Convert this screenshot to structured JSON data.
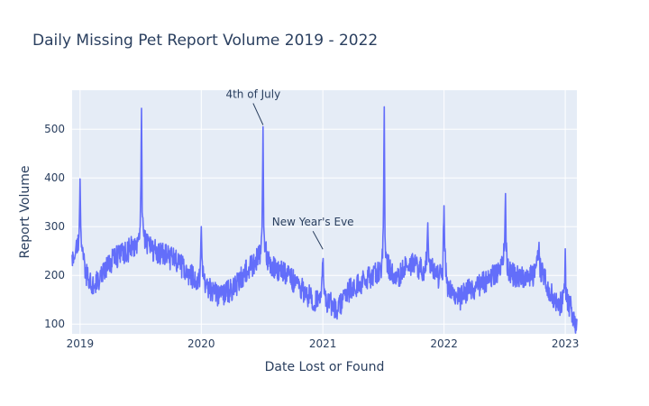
{
  "chart_data": {
    "type": "line",
    "title": "Daily Missing Pet Report Volume 2019 - 2022",
    "xlabel": "Date Lost or Found",
    "ylabel": "Report Volume",
    "x_tick_labels": [
      "2019",
      "2020",
      "2021",
      "2022",
      "2023"
    ],
    "y_ticks": [
      100,
      200,
      300,
      400,
      500
    ],
    "xlim": [
      "2018-12-08",
      "2023-02-05"
    ],
    "ylim": [
      80,
      580
    ],
    "grid": true,
    "colors": {
      "line": "#636efa",
      "plot_bg": "#e5ecf6",
      "grid": "#ffffff",
      "text": "#2a3f5f"
    },
    "x_granularity": "daily",
    "series": [
      {
        "name": "",
        "points": [
          [
            "2018-12-08",
            220
          ],
          [
            "2018-12-15",
            235
          ],
          [
            "2018-12-22",
            260
          ],
          [
            "2018-12-29",
            275
          ],
          [
            "2019-01-01",
            398
          ],
          [
            "2019-01-03",
            300
          ],
          [
            "2019-01-07",
            250
          ],
          [
            "2019-01-12",
            225
          ],
          [
            "2019-01-20",
            200
          ],
          [
            "2019-02-01",
            185
          ],
          [
            "2019-02-15",
            180
          ],
          [
            "2019-03-01",
            195
          ],
          [
            "2019-03-15",
            210
          ],
          [
            "2019-04-01",
            225
          ],
          [
            "2019-04-15",
            235
          ],
          [
            "2019-05-01",
            240
          ],
          [
            "2019-05-15",
            245
          ],
          [
            "2019-06-01",
            255
          ],
          [
            "2019-06-15",
            260
          ],
          [
            "2019-06-25",
            275
          ],
          [
            "2019-07-01",
            300
          ],
          [
            "2019-07-03",
            390
          ],
          [
            "2019-07-05",
            543
          ],
          [
            "2019-07-07",
            330
          ],
          [
            "2019-07-12",
            280
          ],
          [
            "2019-07-20",
            265
          ],
          [
            "2019-08-01",
            255
          ],
          [
            "2019-08-15",
            250
          ],
          [
            "2019-09-01",
            245
          ],
          [
            "2019-09-15",
            240
          ],
          [
            "2019-10-01",
            235
          ],
          [
            "2019-10-15",
            230
          ],
          [
            "2019-11-01",
            220
          ],
          [
            "2019-11-15",
            210
          ],
          [
            "2019-12-01",
            200
          ],
          [
            "2019-12-15",
            190
          ],
          [
            "2019-12-28",
            195
          ],
          [
            "2020-01-01",
            300
          ],
          [
            "2020-01-03",
            235
          ],
          [
            "2020-01-10",
            185
          ],
          [
            "2020-02-01",
            170
          ],
          [
            "2020-02-15",
            160
          ],
          [
            "2020-03-01",
            162
          ],
          [
            "2020-03-15",
            165
          ],
          [
            "2020-04-01",
            170
          ],
          [
            "2020-04-15",
            180
          ],
          [
            "2020-05-01",
            195
          ],
          [
            "2020-05-15",
            210
          ],
          [
            "2020-06-01",
            220
          ],
          [
            "2020-06-15",
            230
          ],
          [
            "2020-06-28",
            245
          ],
          [
            "2020-07-02",
            300
          ],
          [
            "2020-07-05",
            505
          ],
          [
            "2020-07-07",
            300
          ],
          [
            "2020-07-12",
            250
          ],
          [
            "2020-07-20",
            230
          ],
          [
            "2020-08-01",
            220
          ],
          [
            "2020-08-15",
            212
          ],
          [
            "2020-09-01",
            205
          ],
          [
            "2020-09-15",
            198
          ],
          [
            "2020-10-01",
            190
          ],
          [
            "2020-10-15",
            180
          ],
          [
            "2020-11-01",
            170
          ],
          [
            "2020-11-15",
            160
          ],
          [
            "2020-12-01",
            152
          ],
          [
            "2020-12-15",
            148
          ],
          [
            "2020-12-30",
            180
          ],
          [
            "2021-01-01",
            250
          ],
          [
            "2021-01-04",
            160
          ],
          [
            "2021-01-15",
            145
          ],
          [
            "2021-02-01",
            140
          ],
          [
            "2021-02-15",
            125
          ],
          [
            "2021-03-01",
            150
          ],
          [
            "2021-03-15",
            165
          ],
          [
            "2021-04-01",
            175
          ],
          [
            "2021-04-15",
            180
          ],
          [
            "2021-05-01",
            188
          ],
          [
            "2021-05-15",
            192
          ],
          [
            "2021-06-01",
            198
          ],
          [
            "2021-06-15",
            205
          ],
          [
            "2021-06-28",
            220
          ],
          [
            "2021-07-02",
            280
          ],
          [
            "2021-07-05",
            546
          ],
          [
            "2021-07-07",
            280
          ],
          [
            "2021-07-12",
            230
          ],
          [
            "2021-07-20",
            215
          ],
          [
            "2021-08-01",
            205
          ],
          [
            "2021-08-15",
            195
          ],
          [
            "2021-09-01",
            215
          ],
          [
            "2021-09-15",
            225
          ],
          [
            "2021-10-01",
            220
          ],
          [
            "2021-10-15",
            215
          ],
          [
            "2021-11-01",
            210
          ],
          [
            "2021-11-10",
            240
          ],
          [
            "2021-11-13",
            308
          ],
          [
            "2021-11-16",
            230
          ],
          [
            "2021-12-01",
            205
          ],
          [
            "2021-12-15",
            195
          ],
          [
            "2021-12-28",
            210
          ],
          [
            "2022-01-01",
            343
          ],
          [
            "2022-01-03",
            250
          ],
          [
            "2022-01-10",
            175
          ],
          [
            "2022-02-01",
            160
          ],
          [
            "2022-02-15",
            150
          ],
          [
            "2022-03-01",
            160
          ],
          [
            "2022-03-15",
            168
          ],
          [
            "2022-04-01",
            172
          ],
          [
            "2022-04-15",
            178
          ],
          [
            "2022-05-01",
            185
          ],
          [
            "2022-05-15",
            192
          ],
          [
            "2022-06-01",
            200
          ],
          [
            "2022-06-15",
            210
          ],
          [
            "2022-06-28",
            225
          ],
          [
            "2022-07-02",
            260
          ],
          [
            "2022-07-05",
            368
          ],
          [
            "2022-07-07",
            250
          ],
          [
            "2022-07-12",
            215
          ],
          [
            "2022-07-20",
            205
          ],
          [
            "2022-08-01",
            200
          ],
          [
            "2022-08-15",
            198
          ],
          [
            "2022-09-01",
            195
          ],
          [
            "2022-09-15",
            198
          ],
          [
            "2022-10-01",
            200
          ],
          [
            "2022-10-10",
            230
          ],
          [
            "2022-10-13",
            268
          ],
          [
            "2022-10-16",
            215
          ],
          [
            "2022-11-01",
            190
          ],
          [
            "2022-11-15",
            170
          ],
          [
            "2022-12-01",
            150
          ],
          [
            "2022-12-15",
            140
          ],
          [
            "2022-12-28",
            150
          ],
          [
            "2023-01-01",
            232
          ],
          [
            "2023-01-03",
            165
          ],
          [
            "2023-01-10",
            140
          ],
          [
            "2023-01-20",
            130
          ],
          [
            "2023-01-28",
            110
          ],
          [
            "2023-02-05",
            100
          ]
        ]
      }
    ],
    "annotations": [
      {
        "text": "4th of July",
        "x": "2020-07-05",
        "y": 505
      },
      {
        "text": "New Year's Eve",
        "x": "2021-01-01",
        "y": 250
      }
    ]
  }
}
